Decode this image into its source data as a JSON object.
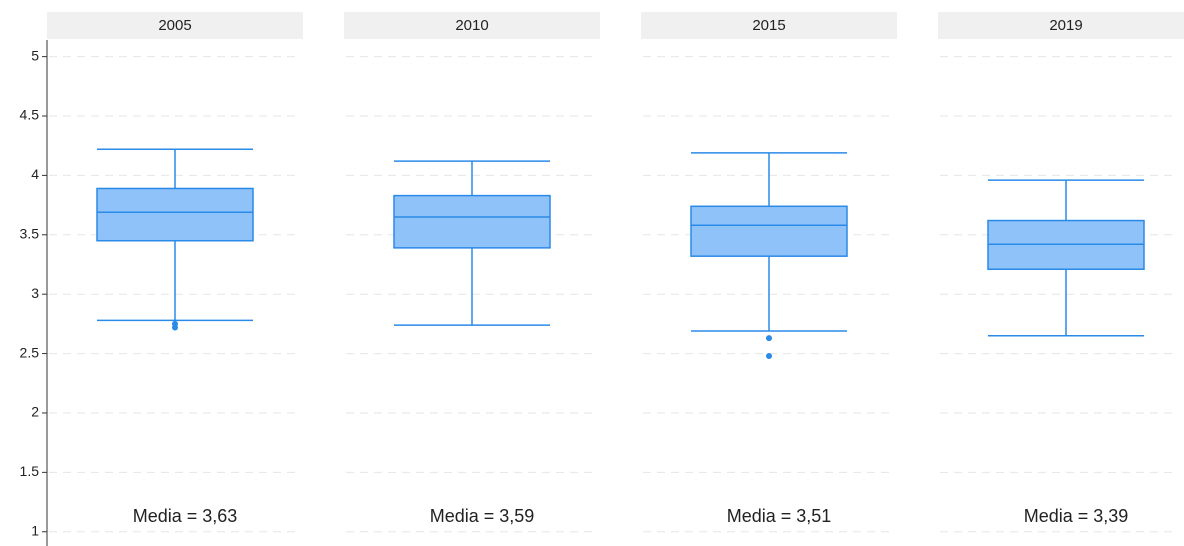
{
  "chart_data": {
    "type": "box",
    "color": "#90c2fa",
    "line_color": "#2a8ae8",
    "ylim": [
      0.88,
      5.14
    ],
    "yticks": [
      1,
      1.5,
      2,
      2.5,
      3,
      3.5,
      4,
      4.5,
      5
    ],
    "grid": true,
    "facets": [
      {
        "title": "2005",
        "min": 2.78,
        "q1": 3.45,
        "median": 3.69,
        "q3": 3.89,
        "max": 4.22,
        "outliers": [
          2.75,
          2.72
        ],
        "annotation": "Media = 3,63"
      },
      {
        "title": "2010",
        "min": 2.74,
        "q1": 3.39,
        "median": 3.65,
        "q3": 3.83,
        "max": 4.12,
        "outliers": [],
        "annotation": "Media = 3,59"
      },
      {
        "title": "2015",
        "min": 2.69,
        "q1": 3.32,
        "median": 3.58,
        "q3": 3.74,
        "max": 4.19,
        "outliers": [
          2.63,
          2.48
        ],
        "annotation": "Media = 3,51"
      },
      {
        "title": "2019",
        "min": 2.65,
        "q1": 3.21,
        "median": 3.42,
        "q3": 3.62,
        "max": 3.96,
        "outliers": [],
        "annotation": "Media = 3,39"
      }
    ]
  }
}
